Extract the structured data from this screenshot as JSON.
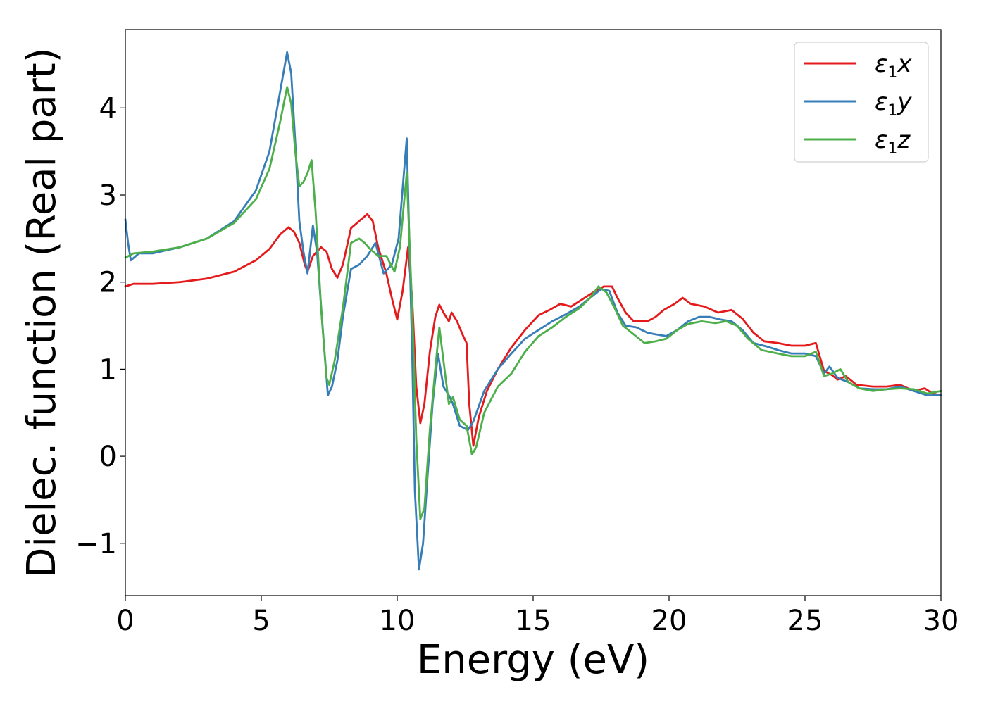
{
  "chart_data": {
    "type": "line",
    "title": "",
    "xlabel": "Energy (eV)",
    "ylabel": "Dielec. function (Real part)",
    "xlim": [
      0,
      30
    ],
    "ylim": [
      -1.6,
      4.9
    ],
    "xticks": [
      0,
      5,
      10,
      15,
      20,
      25,
      30
    ],
    "yticks": [
      -1,
      0,
      1,
      2,
      3,
      4
    ],
    "xtick_labels": [
      "0",
      "5",
      "10",
      "15",
      "20",
      "25",
      "30"
    ],
    "ytick_labels": [
      "−1",
      "0",
      "1",
      "2",
      "3",
      "4"
    ],
    "grid": false,
    "legend_position": "top-right",
    "series": [
      {
        "name": "ε1x",
        "legend_base": "ε",
        "legend_sub": "1",
        "legend_tail": "x",
        "color": "#e41a1c",
        "points": [
          [
            0.0,
            1.95
          ],
          [
            0.3,
            1.98
          ],
          [
            1.0,
            1.98
          ],
          [
            2.0,
            2.0
          ],
          [
            3.0,
            2.04
          ],
          [
            4.0,
            2.12
          ],
          [
            4.8,
            2.25
          ],
          [
            5.3,
            2.38
          ],
          [
            5.7,
            2.55
          ],
          [
            6.0,
            2.63
          ],
          [
            6.2,
            2.58
          ],
          [
            6.4,
            2.45
          ],
          [
            6.6,
            2.2
          ],
          [
            6.7,
            2.12
          ],
          [
            6.9,
            2.3
          ],
          [
            7.2,
            2.4
          ],
          [
            7.4,
            2.35
          ],
          [
            7.6,
            2.15
          ],
          [
            7.8,
            2.05
          ],
          [
            8.0,
            2.2
          ],
          [
            8.3,
            2.62
          ],
          [
            8.6,
            2.7
          ],
          [
            8.9,
            2.78
          ],
          [
            9.1,
            2.7
          ],
          [
            9.3,
            2.4
          ],
          [
            9.6,
            2.1
          ],
          [
            9.8,
            1.82
          ],
          [
            10.0,
            1.57
          ],
          [
            10.2,
            1.9
          ],
          [
            10.4,
            2.4
          ],
          [
            10.55,
            1.8
          ],
          [
            10.7,
            0.8
          ],
          [
            10.85,
            0.38
          ],
          [
            11.0,
            0.6
          ],
          [
            11.2,
            1.2
          ],
          [
            11.4,
            1.6
          ],
          [
            11.55,
            1.74
          ],
          [
            11.7,
            1.65
          ],
          [
            11.9,
            1.55
          ],
          [
            12.0,
            1.65
          ],
          [
            12.2,
            1.55
          ],
          [
            12.4,
            1.4
          ],
          [
            12.55,
            1.3
          ],
          [
            12.65,
            0.6
          ],
          [
            12.8,
            0.12
          ],
          [
            13.0,
            0.45
          ],
          [
            13.3,
            0.75
          ],
          [
            13.7,
            1.0
          ],
          [
            14.2,
            1.25
          ],
          [
            14.7,
            1.45
          ],
          [
            15.2,
            1.62
          ],
          [
            15.6,
            1.68
          ],
          [
            16.0,
            1.75
          ],
          [
            16.4,
            1.72
          ],
          [
            16.8,
            1.8
          ],
          [
            17.2,
            1.88
          ],
          [
            17.6,
            1.95
          ],
          [
            17.9,
            1.95
          ],
          [
            18.1,
            1.82
          ],
          [
            18.4,
            1.65
          ],
          [
            18.7,
            1.55
          ],
          [
            19.2,
            1.55
          ],
          [
            19.5,
            1.6
          ],
          [
            19.8,
            1.68
          ],
          [
            20.2,
            1.75
          ],
          [
            20.5,
            1.82
          ],
          [
            20.8,
            1.75
          ],
          [
            21.3,
            1.72
          ],
          [
            21.8,
            1.65
          ],
          [
            22.3,
            1.68
          ],
          [
            22.7,
            1.58
          ],
          [
            23.1,
            1.42
          ],
          [
            23.5,
            1.32
          ],
          [
            24.0,
            1.3
          ],
          [
            24.5,
            1.27
          ],
          [
            25.0,
            1.27
          ],
          [
            25.4,
            1.3
          ],
          [
            25.7,
            0.98
          ],
          [
            26.0,
            0.93
          ],
          [
            26.2,
            0.88
          ],
          [
            26.5,
            0.92
          ],
          [
            26.9,
            0.82
          ],
          [
            27.5,
            0.8
          ],
          [
            28.0,
            0.8
          ],
          [
            28.5,
            0.82
          ],
          [
            29.0,
            0.75
          ],
          [
            29.4,
            0.78
          ],
          [
            29.7,
            0.72
          ],
          [
            30.0,
            0.7
          ]
        ]
      },
      {
        "name": "ε1y",
        "legend_base": "ε",
        "legend_sub": "1",
        "legend_tail": "y",
        "color": "#377eb8",
        "points": [
          [
            0.0,
            2.72
          ],
          [
            0.1,
            2.45
          ],
          [
            0.2,
            2.25
          ],
          [
            0.5,
            2.33
          ],
          [
            1.0,
            2.33
          ],
          [
            2.0,
            2.4
          ],
          [
            3.0,
            2.5
          ],
          [
            4.0,
            2.7
          ],
          [
            4.8,
            3.05
          ],
          [
            5.3,
            3.5
          ],
          [
            5.7,
            4.2
          ],
          [
            5.95,
            4.64
          ],
          [
            6.1,
            4.4
          ],
          [
            6.25,
            3.6
          ],
          [
            6.4,
            2.7
          ],
          [
            6.55,
            2.35
          ],
          [
            6.7,
            2.1
          ],
          [
            6.9,
            2.65
          ],
          [
            7.05,
            2.35
          ],
          [
            7.3,
            1.3
          ],
          [
            7.45,
            0.7
          ],
          [
            7.6,
            0.8
          ],
          [
            7.8,
            1.1
          ],
          [
            8.0,
            1.6
          ],
          [
            8.3,
            2.15
          ],
          [
            8.6,
            2.2
          ],
          [
            8.9,
            2.3
          ],
          [
            9.2,
            2.45
          ],
          [
            9.5,
            2.1
          ],
          [
            9.8,
            2.2
          ],
          [
            10.05,
            2.5
          ],
          [
            10.35,
            3.65
          ],
          [
            10.55,
            1.2
          ],
          [
            10.65,
            -0.4
          ],
          [
            10.8,
            -1.3
          ],
          [
            10.95,
            -1.0
          ],
          [
            11.1,
            -0.3
          ],
          [
            11.3,
            0.6
          ],
          [
            11.5,
            1.18
          ],
          [
            11.7,
            0.8
          ],
          [
            11.9,
            0.7
          ],
          [
            12.05,
            0.6
          ],
          [
            12.3,
            0.35
          ],
          [
            12.6,
            0.3
          ],
          [
            12.8,
            0.4
          ],
          [
            13.2,
            0.75
          ],
          [
            13.7,
            1.0
          ],
          [
            14.2,
            1.18
          ],
          [
            14.7,
            1.35
          ],
          [
            15.2,
            1.45
          ],
          [
            15.7,
            1.55
          ],
          [
            16.2,
            1.63
          ],
          [
            16.7,
            1.72
          ],
          [
            17.1,
            1.82
          ],
          [
            17.5,
            1.92
          ],
          [
            17.8,
            1.9
          ],
          [
            18.1,
            1.65
          ],
          [
            18.4,
            1.5
          ],
          [
            18.8,
            1.48
          ],
          [
            19.2,
            1.42
          ],
          [
            19.5,
            1.4
          ],
          [
            19.9,
            1.38
          ],
          [
            20.3,
            1.45
          ],
          [
            20.7,
            1.55
          ],
          [
            21.1,
            1.6
          ],
          [
            21.5,
            1.6
          ],
          [
            21.9,
            1.57
          ],
          [
            22.3,
            1.55
          ],
          [
            22.7,
            1.45
          ],
          [
            23.1,
            1.3
          ],
          [
            23.6,
            1.26
          ],
          [
            24.0,
            1.22
          ],
          [
            24.5,
            1.18
          ],
          [
            25.0,
            1.18
          ],
          [
            25.4,
            1.15
          ],
          [
            25.7,
            0.95
          ],
          [
            25.9,
            1.03
          ],
          [
            26.2,
            0.9
          ],
          [
            26.6,
            0.85
          ],
          [
            27.0,
            0.78
          ],
          [
            27.5,
            0.77
          ],
          [
            28.0,
            0.77
          ],
          [
            28.5,
            0.8
          ],
          [
            29.0,
            0.75
          ],
          [
            29.5,
            0.7
          ],
          [
            30.0,
            0.7
          ]
        ]
      },
      {
        "name": "ε1z",
        "legend_base": "ε",
        "legend_sub": "1",
        "legend_tail": "z",
        "color": "#4daf4a",
        "points": [
          [
            0.0,
            2.28
          ],
          [
            0.3,
            2.33
          ],
          [
            1.0,
            2.35
          ],
          [
            2.0,
            2.4
          ],
          [
            3.0,
            2.5
          ],
          [
            4.0,
            2.68
          ],
          [
            4.8,
            2.95
          ],
          [
            5.3,
            3.3
          ],
          [
            5.7,
            3.85
          ],
          [
            5.95,
            4.24
          ],
          [
            6.1,
            4.05
          ],
          [
            6.25,
            3.5
          ],
          [
            6.4,
            3.1
          ],
          [
            6.55,
            3.15
          ],
          [
            6.7,
            3.25
          ],
          [
            6.85,
            3.4
          ],
          [
            7.0,
            2.8
          ],
          [
            7.2,
            1.7
          ],
          [
            7.4,
            0.9
          ],
          [
            7.5,
            0.82
          ],
          [
            7.7,
            1.1
          ],
          [
            8.0,
            1.7
          ],
          [
            8.3,
            2.45
          ],
          [
            8.6,
            2.5
          ],
          [
            8.8,
            2.45
          ],
          [
            9.0,
            2.38
          ],
          [
            9.3,
            2.3
          ],
          [
            9.6,
            2.3
          ],
          [
            9.9,
            2.12
          ],
          [
            10.1,
            2.4
          ],
          [
            10.35,
            3.25
          ],
          [
            10.55,
            1.7
          ],
          [
            10.7,
            0.2
          ],
          [
            10.85,
            -0.72
          ],
          [
            11.0,
            -0.6
          ],
          [
            11.2,
            0.3
          ],
          [
            11.4,
            1.0
          ],
          [
            11.55,
            1.48
          ],
          [
            11.7,
            1.1
          ],
          [
            11.9,
            0.6
          ],
          [
            12.05,
            0.68
          ],
          [
            12.3,
            0.42
          ],
          [
            12.55,
            0.35
          ],
          [
            12.75,
            0.02
          ],
          [
            12.9,
            0.1
          ],
          [
            13.2,
            0.5
          ],
          [
            13.7,
            0.8
          ],
          [
            14.2,
            0.95
          ],
          [
            14.7,
            1.2
          ],
          [
            15.2,
            1.38
          ],
          [
            15.7,
            1.48
          ],
          [
            16.2,
            1.6
          ],
          [
            16.7,
            1.7
          ],
          [
            17.1,
            1.82
          ],
          [
            17.4,
            1.95
          ],
          [
            17.7,
            1.88
          ],
          [
            18.0,
            1.7
          ],
          [
            18.3,
            1.5
          ],
          [
            18.7,
            1.4
          ],
          [
            19.1,
            1.3
          ],
          [
            19.5,
            1.32
          ],
          [
            19.9,
            1.35
          ],
          [
            20.3,
            1.45
          ],
          [
            20.7,
            1.52
          ],
          [
            21.2,
            1.55
          ],
          [
            21.7,
            1.53
          ],
          [
            22.1,
            1.55
          ],
          [
            22.5,
            1.5
          ],
          [
            22.9,
            1.35
          ],
          [
            23.4,
            1.22
          ],
          [
            24.0,
            1.18
          ],
          [
            24.5,
            1.15
          ],
          [
            25.0,
            1.15
          ],
          [
            25.4,
            1.2
          ],
          [
            25.7,
            0.92
          ],
          [
            26.0,
            0.95
          ],
          [
            26.3,
            1.0
          ],
          [
            26.6,
            0.85
          ],
          [
            27.0,
            0.78
          ],
          [
            27.5,
            0.75
          ],
          [
            28.0,
            0.77
          ],
          [
            28.5,
            0.78
          ],
          [
            29.0,
            0.77
          ],
          [
            29.5,
            0.72
          ],
          [
            30.0,
            0.75
          ]
        ]
      }
    ]
  }
}
